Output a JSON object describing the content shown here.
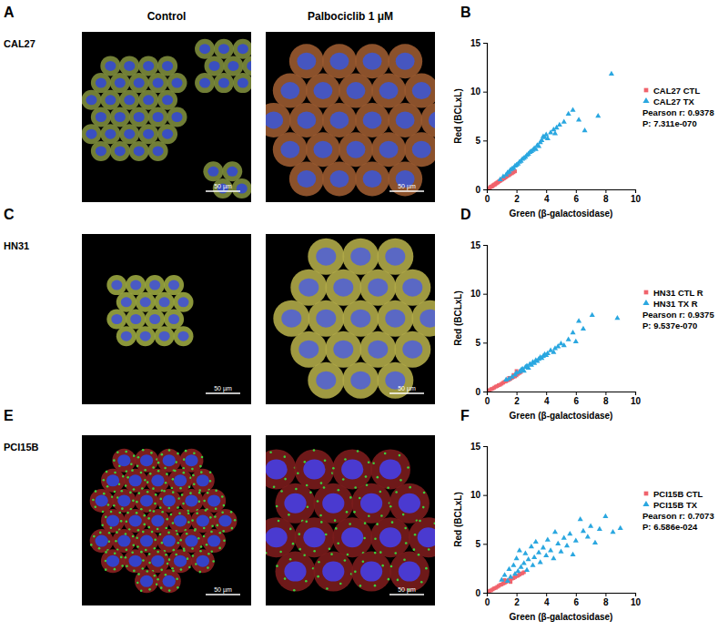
{
  "figure": {
    "columns": [
      "Control",
      "Palbociclib 1 μM"
    ],
    "rows": [
      {
        "label": "CAL27",
        "panels": [
          "A",
          "B"
        ],
        "scale_bar": "50 µm"
      },
      {
        "label": "HN31",
        "panels": [
          "C",
          "D"
        ],
        "scale_bar": "50 µm"
      },
      {
        "label": "PCI15B",
        "panels": [
          "E",
          "F"
        ],
        "scale_bar": "50 µm"
      }
    ]
  },
  "chart_data": [
    {
      "type": "scatter",
      "x_label": "Green (β-galactosidase)",
      "y_label": "Red (BCLxL)",
      "xlim": [
        0,
        10
      ],
      "ylim": [
        0,
        15
      ],
      "xticks": [
        0,
        2,
        4,
        6,
        8,
        10
      ],
      "yticks": [
        0,
        5,
        10,
        15
      ],
      "legend": "right",
      "annotations": [
        "Pearson r: 0.9378",
        "P: 7.311e-070"
      ],
      "series": [
        {
          "name": "CAL27 CTL",
          "color": "#f0636c",
          "marker": "square",
          "x": [
            0.1,
            0.2,
            0.25,
            0.3,
            0.35,
            0.4,
            0.45,
            0.5,
            0.55,
            0.6,
            0.65,
            0.7,
            0.75,
            0.8,
            0.85,
            0.9,
            0.95,
            1.0,
            1.05,
            1.1,
            1.15,
            1.2,
            1.25,
            1.3,
            1.35,
            1.4,
            1.5,
            1.55,
            1.6,
            1.7,
            1.8,
            1.9
          ],
          "values": [
            0.1,
            0.15,
            0.25,
            0.3,
            0.28,
            0.4,
            0.42,
            0.5,
            0.5,
            0.6,
            0.62,
            0.7,
            0.72,
            0.8,
            0.85,
            0.88,
            0.95,
            1.0,
            1.02,
            1.1,
            1.12,
            1.2,
            1.22,
            1.3,
            1.35,
            1.4,
            1.45,
            1.55,
            1.6,
            1.65,
            1.75,
            1.85
          ]
        },
        {
          "name": "CAL27 TX",
          "color": "#2aa7e0",
          "marker": "triangle",
          "x": [
            0.9,
            1.1,
            1.3,
            1.4,
            1.5,
            1.6,
            1.7,
            1.8,
            1.9,
            2.0,
            2.1,
            2.2,
            2.3,
            2.4,
            2.5,
            2.6,
            2.7,
            2.8,
            2.9,
            3.0,
            3.1,
            3.2,
            3.3,
            3.4,
            3.5,
            3.6,
            3.7,
            3.8,
            3.9,
            4.0,
            4.1,
            4.3,
            4.5,
            4.6,
            4.7,
            4.9,
            5.2,
            5.5,
            5.8,
            6.2,
            6.6,
            7.5,
            8.4
          ],
          "values": [
            1.0,
            1.3,
            1.5,
            1.7,
            1.8,
            2.0,
            2.1,
            2.2,
            2.4,
            2.5,
            2.6,
            2.8,
            2.9,
            3.1,
            3.2,
            3.3,
            3.5,
            3.6,
            3.8,
            3.9,
            4.0,
            4.2,
            4.1,
            4.5,
            4.4,
            4.8,
            5.0,
            5.4,
            5.3,
            5.6,
            5.2,
            5.8,
            6.1,
            5.7,
            6.3,
            6.6,
            6.9,
            7.7,
            8.1,
            7.1,
            6.0,
            7.5,
            11.8
          ]
        }
      ]
    },
    {
      "type": "scatter",
      "x_label": "Green (β-galactosidase)",
      "y_label": "Red (BCLxL)",
      "xlim": [
        0,
        10
      ],
      "ylim": [
        0,
        15
      ],
      "xticks": [
        0,
        2,
        4,
        6,
        8,
        10
      ],
      "yticks": [
        0,
        5,
        10,
        15
      ],
      "legend": "right",
      "annotations": [
        "Pearson r: 0.9375",
        "P: 9.537e-070"
      ],
      "series": [
        {
          "name": "HN31 CTL R",
          "color": "#f0636c",
          "marker": "square",
          "x": [
            0.1,
            0.2,
            0.3,
            0.4,
            0.5,
            0.6,
            0.7,
            0.8,
            0.9,
            1.0,
            1.1,
            1.2,
            1.3,
            1.4,
            1.5,
            1.6,
            1.7,
            1.8,
            1.9,
            2.0,
            2.1,
            2.2,
            2.3,
            1.5,
            1.8,
            2.0
          ],
          "values": [
            0.1,
            0.15,
            0.25,
            0.3,
            0.4,
            0.5,
            0.55,
            0.65,
            0.7,
            0.8,
            0.9,
            1.0,
            1.05,
            1.15,
            1.2,
            1.3,
            1.4,
            1.5,
            1.55,
            1.65,
            1.8,
            1.9,
            2.0,
            1.4,
            1.7,
            2.1
          ]
        },
        {
          "name": "HN31 TX R",
          "color": "#2aa7e0",
          "marker": "triangle",
          "x": [
            1.3,
            1.5,
            1.7,
            1.9,
            2.0,
            2.2,
            2.3,
            2.4,
            2.5,
            2.6,
            2.7,
            2.8,
            2.9,
            3.0,
            3.1,
            3.2,
            3.3,
            3.4,
            3.5,
            3.6,
            3.7,
            3.8,
            3.9,
            4.0,
            4.1,
            4.3,
            4.5,
            4.6,
            4.8,
            5.0,
            5.2,
            5.5,
            5.8,
            6.0,
            6.2,
            6.5,
            7.1,
            8.8
          ],
          "values": [
            1.2,
            1.3,
            1.5,
            1.7,
            1.9,
            2.0,
            2.2,
            2.3,
            2.1,
            2.5,
            2.6,
            2.4,
            2.8,
            2.7,
            3.0,
            2.9,
            3.2,
            3.1,
            3.3,
            3.5,
            3.4,
            3.6,
            3.8,
            3.7,
            3.9,
            4.2,
            4.0,
            4.4,
            4.6,
            4.9,
            4.7,
            5.3,
            6.0,
            5.1,
            7.2,
            6.4,
            7.8,
            7.5
          ]
        }
      ]
    },
    {
      "type": "scatter",
      "x_label": "Green (β-galactosidase)",
      "y_label": "Red (BCLxL)",
      "xlim": [
        0,
        10
      ],
      "ylim": [
        0,
        15
      ],
      "xticks": [
        0,
        2,
        4,
        6,
        8,
        10
      ],
      "yticks": [
        0,
        5,
        10,
        15
      ],
      "legend": "right",
      "annotations": [
        "Pearson r: 0.7073",
        "P: 6.586e-024"
      ],
      "series": [
        {
          "name": "PCI15B CTL",
          "color": "#f0636c",
          "marker": "square",
          "x": [
            0.1,
            0.2,
            0.3,
            0.4,
            0.5,
            0.6,
            0.7,
            0.8,
            0.9,
            1.0,
            1.1,
            1.2,
            1.3,
            1.4,
            1.5,
            1.6,
            1.7,
            1.8,
            1.9,
            2.0,
            2.1,
            2.2,
            2.3,
            2.4,
            2.5,
            1.2,
            1.6
          ],
          "values": [
            0.1,
            0.2,
            0.25,
            0.35,
            0.45,
            0.5,
            0.6,
            0.7,
            0.8,
            0.85,
            0.95,
            1.0,
            1.1,
            1.2,
            1.3,
            1.35,
            1.45,
            1.5,
            1.6,
            1.7,
            1.75,
            1.85,
            1.95,
            2.0,
            2.1,
            1.3,
            1.1
          ]
        },
        {
          "name": "PCI15B TX",
          "color": "#2aa7e0",
          "marker": "triangle",
          "x": [
            1.0,
            1.2,
            1.4,
            1.5,
            1.6,
            1.8,
            1.9,
            2.0,
            2.1,
            2.2,
            2.3,
            2.5,
            2.6,
            2.7,
            2.8,
            3.0,
            3.1,
            3.2,
            3.3,
            3.5,
            3.6,
            3.8,
            4.0,
            4.1,
            4.3,
            4.5,
            4.6,
            4.8,
            5.0,
            5.2,
            5.4,
            5.6,
            5.8,
            6.0,
            6.3,
            6.5,
            6.8,
            7.0,
            7.3,
            7.6,
            8.0,
            8.5,
            9.0
          ],
          "values": [
            1.3,
            1.8,
            1.2,
            2.4,
            1.6,
            2.8,
            1.9,
            3.5,
            2.2,
            4.3,
            2.6,
            3.0,
            4.0,
            2.3,
            3.4,
            4.7,
            2.8,
            3.6,
            5.2,
            4.1,
            3.1,
            4.6,
            3.8,
            5.4,
            4.3,
            3.5,
            6.2,
            5.0,
            4.2,
            5.6,
            4.8,
            6.0,
            3.9,
            5.3,
            7.5,
            6.3,
            5.7,
            6.8,
            5.1,
            6.5,
            7.8,
            6.2,
            6.6
          ]
        }
      ]
    }
  ]
}
